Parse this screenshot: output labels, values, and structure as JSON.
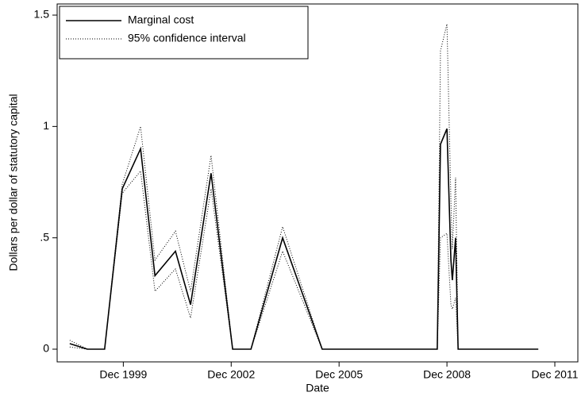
{
  "chart_data": {
    "type": "line",
    "xlabel": "Date",
    "ylabel": "Dollars per dollar of statutory capital",
    "x": [
      1998.43,
      1998.92,
      1999.4,
      1999.89,
      2000.4,
      2000.8,
      2001.37,
      2001.79,
      2002.36,
      2002.96,
      2003.47,
      2004.35,
      2005.45,
      2008.65,
      2008.74,
      2008.92,
      2009.03,
      2009.07,
      2009.16,
      2009.23,
      2011.46
    ],
    "series": [
      {
        "name": "Marginal cost",
        "color": "#000000",
        "style": "solid",
        "values": [
          0.025,
          0,
          0,
          0.72,
          0.9,
          0.33,
          0.44,
          0.2,
          0.79,
          0,
          0,
          0.5,
          0,
          0,
          0.92,
          0.99,
          0.4,
          0.31,
          0.5,
          0,
          0
        ]
      },
      {
        "name": "95% confidence interval",
        "color": "#000000",
        "style": "dotted",
        "upper": [
          0.04,
          0,
          0,
          0.74,
          1.0,
          0.4,
          0.53,
          0.26,
          0.87,
          0,
          0,
          0.55,
          0,
          0,
          1.34,
          1.46,
          0.67,
          0.45,
          0.77,
          0,
          0
        ],
        "lower": [
          0.01,
          0,
          0,
          0.7,
          0.8,
          0.26,
          0.36,
          0.14,
          0.72,
          0,
          0,
          0.44,
          0,
          0,
          0.5,
          0.52,
          0.2,
          0.18,
          0.23,
          0,
          0
        ]
      }
    ],
    "xlim": [
      1998.08,
      2012.56
    ],
    "xticks": [
      {
        "value": 1999.92,
        "label": "Dec 1999"
      },
      {
        "value": 2002.92,
        "label": "Dec 2002"
      },
      {
        "value": 2005.92,
        "label": "Dec 2005"
      },
      {
        "value": 2008.92,
        "label": "Dec 2008"
      },
      {
        "value": 2011.92,
        "label": "Dec 2011"
      }
    ],
    "ylim": [
      -0.057,
      1.55
    ],
    "yticks": [
      0,
      {
        "value": 0.5,
        "label": ".5"
      },
      1,
      1.5
    ],
    "legend": "top-left"
  }
}
